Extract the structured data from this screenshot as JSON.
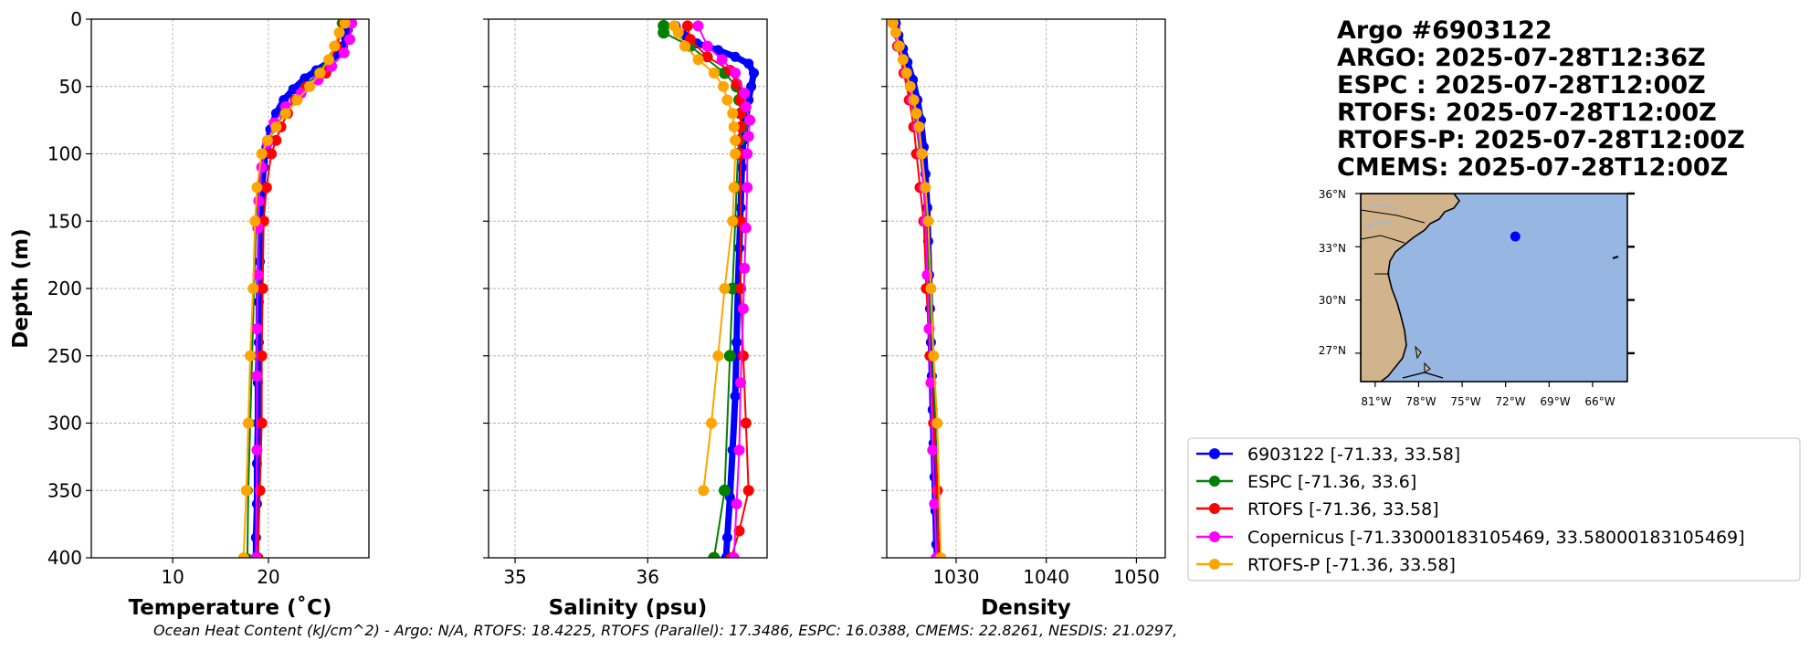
{
  "title_lines": [
    "Argo #6903122",
    "ARGO: 2025-07-28T12:36Z",
    "ESPC : 2025-07-28T12:00Z",
    "RTOFS: 2025-07-28T12:00Z",
    "RTOFS-P: 2025-07-28T12:00Z",
    "CMEMS: 2025-07-28T12:00Z"
  ],
  "footer": "Ocean Heat Content (kJ/cm^2) - Argo: N/A,  RTOFS: 18.4225,  RTOFS (Parallel): 17.3486,  ESPC: 16.0388,  CMEMS: 22.8261,  NESDIS: 21.0297,",
  "map": {
    "lat_labels": [
      "36°N",
      "33°N",
      "30°N",
      "27°N"
    ],
    "lon_labels": [
      "81°W",
      "78°W",
      "75°W",
      "72°W",
      "69°W",
      "66°W"
    ],
    "float_position": {
      "lon": -71.33,
      "lat": 33.58
    },
    "land_color": "#d2b48c",
    "ocean_color": "#97b6e1"
  },
  "legend": [
    {
      "label": "6903122 [-71.33, 33.58]",
      "color": "#0000ff"
    },
    {
      "label": "ESPC [-71.36, 33.6]",
      "color": "#008000"
    },
    {
      "label": "RTOFS [-71.36, 33.58]",
      "color": "#ff0000"
    },
    {
      "label": "Copernicus [-71.33000183105469, 33.58000183105469]",
      "color": "#ff00ff"
    },
    {
      "label": "RTOFS-P [-71.36, 33.58]",
      "color": "#ffa500"
    }
  ],
  "chart_data": [
    {
      "type": "line",
      "title": "",
      "xlabel": "Temperature (˚C)",
      "ylabel": "Depth (m)",
      "xlim": [
        1.5,
        30.5
      ],
      "ylim": [
        400,
        0
      ],
      "xticks": [
        10,
        20
      ],
      "yticks": [
        0,
        50,
        100,
        150,
        200,
        250,
        300,
        350,
        400
      ],
      "grid": true,
      "series": [
        {
          "name": "6903122",
          "color": "#0000ff",
          "lw": 7,
          "ms": 5.5,
          "x": [
            28.4,
            28.3,
            28.1,
            27.8,
            27.2,
            26.3,
            25.0,
            23.8,
            22.6,
            21.6,
            20.8,
            20.2,
            19.8,
            19.5,
            19.3,
            19.2,
            19.1,
            19.0,
            19.0,
            18.9,
            18.9,
            18.8,
            18.8,
            18.7,
            18.7
          ],
          "y": [
            3,
            8,
            14,
            20,
            26,
            32,
            38,
            44,
            52,
            60,
            70,
            82,
            95,
            110,
            130,
            150,
            180,
            210,
            240,
            270,
            300,
            330,
            360,
            385,
            400
          ]
        },
        {
          "name": "ESPC",
          "color": "#008000",
          "lw": 2,
          "ms": 5,
          "x": [
            27.6,
            27.0,
            25.2,
            23.8,
            22.8,
            21.6,
            20.8,
            20.0,
            19.3,
            18.9,
            18.7,
            18.5,
            18.3,
            18.1,
            17.9,
            17.8
          ],
          "y": [
            3,
            20,
            40,
            50,
            60,
            70,
            80,
            90,
            100,
            125,
            150,
            200,
            250,
            300,
            350,
            400
          ]
        },
        {
          "name": "RTOFS",
          "color": "#ff0000",
          "lw": 2,
          "ms": 6,
          "x": [
            27.9,
            27.1,
            26.0,
            24.0,
            22.8,
            22.0,
            21.3,
            20.8,
            20.3,
            19.8,
            19.5,
            19.4,
            19.3,
            19.3,
            19.1,
            18.9
          ],
          "y": [
            3,
            20,
            40,
            50,
            60,
            70,
            80,
            90,
            100,
            125,
            150,
            200,
            250,
            300,
            350,
            400
          ]
        },
        {
          "name": "Copernicus",
          "color": "#ff00ff",
          "lw": 2,
          "ms": 6,
          "x": [
            28.7,
            28.5,
            27.9,
            26.6,
            25.2,
            23.4,
            21.8,
            20.6,
            19.9,
            19.3,
            19.0,
            18.9,
            18.9,
            18.8,
            18.8,
            18.8,
            18.7
          ],
          "y": [
            3,
            15,
            25,
            35,
            45,
            55,
            65,
            77,
            92,
            110,
            135,
            155,
            190,
            230,
            265,
            320,
            400
          ]
        },
        {
          "name": "RTOFS-P",
          "color": "#ffa500",
          "lw": 2,
          "ms": 6,
          "x": [
            28.0,
            27.4,
            26.9,
            26.3,
            25.4,
            24.3,
            23.0,
            21.8,
            20.8,
            19.9,
            19.3,
            18.8,
            18.6,
            18.4,
            18.1,
            17.9,
            17.7,
            17.4
          ],
          "y": [
            3,
            10,
            20,
            30,
            40,
            50,
            60,
            70,
            80,
            90,
            100,
            125,
            150,
            200,
            250,
            300,
            350,
            400
          ]
        }
      ]
    },
    {
      "type": "line",
      "title": "",
      "xlabel": "Salinity (psu)",
      "ylabel": "",
      "xlim": [
        34.8,
        36.9
      ],
      "ylim": [
        400,
        0
      ],
      "xticks": [
        35,
        36
      ],
      "yticks": [
        0,
        50,
        100,
        150,
        200,
        250,
        300,
        350,
        400
      ],
      "grid": true,
      "series": [
        {
          "name": "6903122",
          "color": "#0000ff",
          "lw": 7,
          "ms": 5.5,
          "x": [
            36.21,
            36.27,
            36.37,
            36.53,
            36.66,
            36.76,
            36.8,
            36.78,
            36.76,
            36.74,
            36.72,
            36.71,
            36.7,
            36.69,
            36.68,
            36.67,
            36.66,
            36.64,
            36.62,
            36.6,
            36.59
          ],
          "y": [
            5,
            12,
            18,
            23,
            28,
            33,
            40,
            50,
            60,
            75,
            90,
            110,
            140,
            170,
            200,
            240,
            280,
            320,
            355,
            385,
            400
          ]
        },
        {
          "name": "ESPC",
          "color": "#008000",
          "lw": 2,
          "ms": 6.5,
          "x": [
            36.12,
            36.12,
            36.32,
            36.58,
            36.67,
            36.69,
            36.7,
            36.71,
            36.69,
            36.68,
            36.67,
            36.66,
            36.64,
            36.62,
            36.58,
            36.5
          ],
          "y": [
            5,
            10,
            20,
            40,
            50,
            60,
            70,
            80,
            90,
            100,
            125,
            150,
            200,
            250,
            350,
            400
          ]
        },
        {
          "name": "RTOFS",
          "color": "#ff0000",
          "lw": 2,
          "ms": 6,
          "x": [
            36.3,
            36.32,
            36.45,
            36.62,
            36.67,
            36.7,
            36.7,
            36.7,
            36.68,
            36.7,
            36.7,
            36.7,
            36.72,
            36.74,
            36.76,
            36.69,
            36.63
          ],
          "y": [
            5,
            15,
            28,
            38,
            48,
            60,
            70,
            80,
            90,
            100,
            150,
            200,
            250,
            300,
            350,
            380,
            400
          ]
        },
        {
          "name": "Copernicus",
          "color": "#ff00ff",
          "lw": 2,
          "ms": 6,
          "x": [
            36.38,
            36.45,
            36.56,
            36.66,
            36.73,
            36.74,
            36.77,
            36.76,
            36.75,
            36.75,
            36.74,
            36.73,
            36.72,
            36.7,
            36.69,
            36.67,
            36.65
          ],
          "y": [
            5,
            20,
            30,
            40,
            55,
            65,
            75,
            87,
            100,
            125,
            155,
            185,
            215,
            270,
            320,
            360,
            400
          ]
        },
        {
          "name": "RTOFS-P",
          "color": "#ffa500",
          "lw": 2,
          "ms": 6,
          "x": [
            36.2,
            36.23,
            36.28,
            36.38,
            36.5,
            36.57,
            36.6,
            36.64,
            36.65,
            36.66,
            36.66,
            36.65,
            36.64,
            36.58,
            36.53,
            36.48,
            36.42
          ],
          "y": [
            5,
            10,
            20,
            30,
            40,
            50,
            60,
            70,
            80,
            90,
            100,
            125,
            150,
            200,
            250,
            300,
            350
          ]
        }
      ]
    },
    {
      "type": "line",
      "title": "",
      "xlabel": "Density",
      "ylabel": "",
      "xlim": [
        1022.3,
        1053.2
      ],
      "ylim": [
        400,
        0
      ],
      "xticks": [
        1030,
        1040,
        1050
      ],
      "yticks": [
        0,
        50,
        100,
        150,
        200,
        250,
        300,
        350,
        400
      ],
      "grid": true,
      "series": [
        {
          "name": "6903122",
          "color": "#0000ff",
          "lw": 7,
          "ms": 5.5,
          "x": [
            1023.3,
            1023.6,
            1024.1,
            1024.6,
            1025.2,
            1025.7,
            1026.1,
            1026.4,
            1026.6,
            1026.8,
            1026.9,
            1027.0,
            1027.1,
            1027.2,
            1027.3,
            1027.4,
            1027.5,
            1027.6,
            1027.7,
            1027.8,
            1027.9
          ],
          "y": [
            3,
            12,
            22,
            32,
            45,
            60,
            75,
            95,
            115,
            140,
            165,
            190,
            215,
            240,
            265,
            290,
            315,
            340,
            365,
            390,
            400
          ]
        },
        {
          "name": "ESPC",
          "color": "#008000",
          "lw": 2,
          "ms": 5,
          "x": [
            1023.0,
            1023.7,
            1024.3,
            1025.0,
            1025.6,
            1026.0,
            1026.4,
            1026.7,
            1027.0,
            1027.4,
            1027.7,
            1028.0
          ],
          "y": [
            3,
            20,
            40,
            60,
            80,
            100,
            125,
            150,
            200,
            250,
            300,
            400
          ]
        },
        {
          "name": "RTOFS",
          "color": "#ff0000",
          "lw": 2,
          "ms": 6,
          "x": [
            1023.0,
            1023.5,
            1024.2,
            1024.8,
            1025.3,
            1025.6,
            1026.0,
            1026.4,
            1026.7,
            1027.1,
            1027.5,
            1027.9,
            1028.0
          ],
          "y": [
            3,
            20,
            40,
            60,
            80,
            100,
            125,
            150,
            200,
            250,
            300,
            350,
            400
          ]
        },
        {
          "name": "Copernicus",
          "color": "#ff00ff",
          "lw": 2,
          "ms": 6,
          "x": [
            1023.0,
            1023.6,
            1024.4,
            1025.1,
            1025.7,
            1026.1,
            1026.4,
            1026.6,
            1026.8,
            1027.0,
            1027.2,
            1027.4,
            1027.6,
            1027.8
          ],
          "y": [
            3,
            20,
            40,
            60,
            80,
            100,
            125,
            150,
            190,
            230,
            270,
            320,
            360,
            400
          ]
        },
        {
          "name": "RTOFS-P",
          "color": "#ffa500",
          "lw": 2,
          "ms": 6,
          "x": [
            1023.0,
            1023.3,
            1023.7,
            1024.1,
            1024.5,
            1024.9,
            1025.3,
            1025.6,
            1025.9,
            1026.2,
            1026.6,
            1026.9,
            1027.2,
            1027.5,
            1027.9,
            1028.3
          ],
          "y": [
            3,
            10,
            20,
            30,
            40,
            50,
            60,
            70,
            80,
            100,
            125,
            150,
            200,
            250,
            300,
            400
          ]
        }
      ]
    }
  ]
}
